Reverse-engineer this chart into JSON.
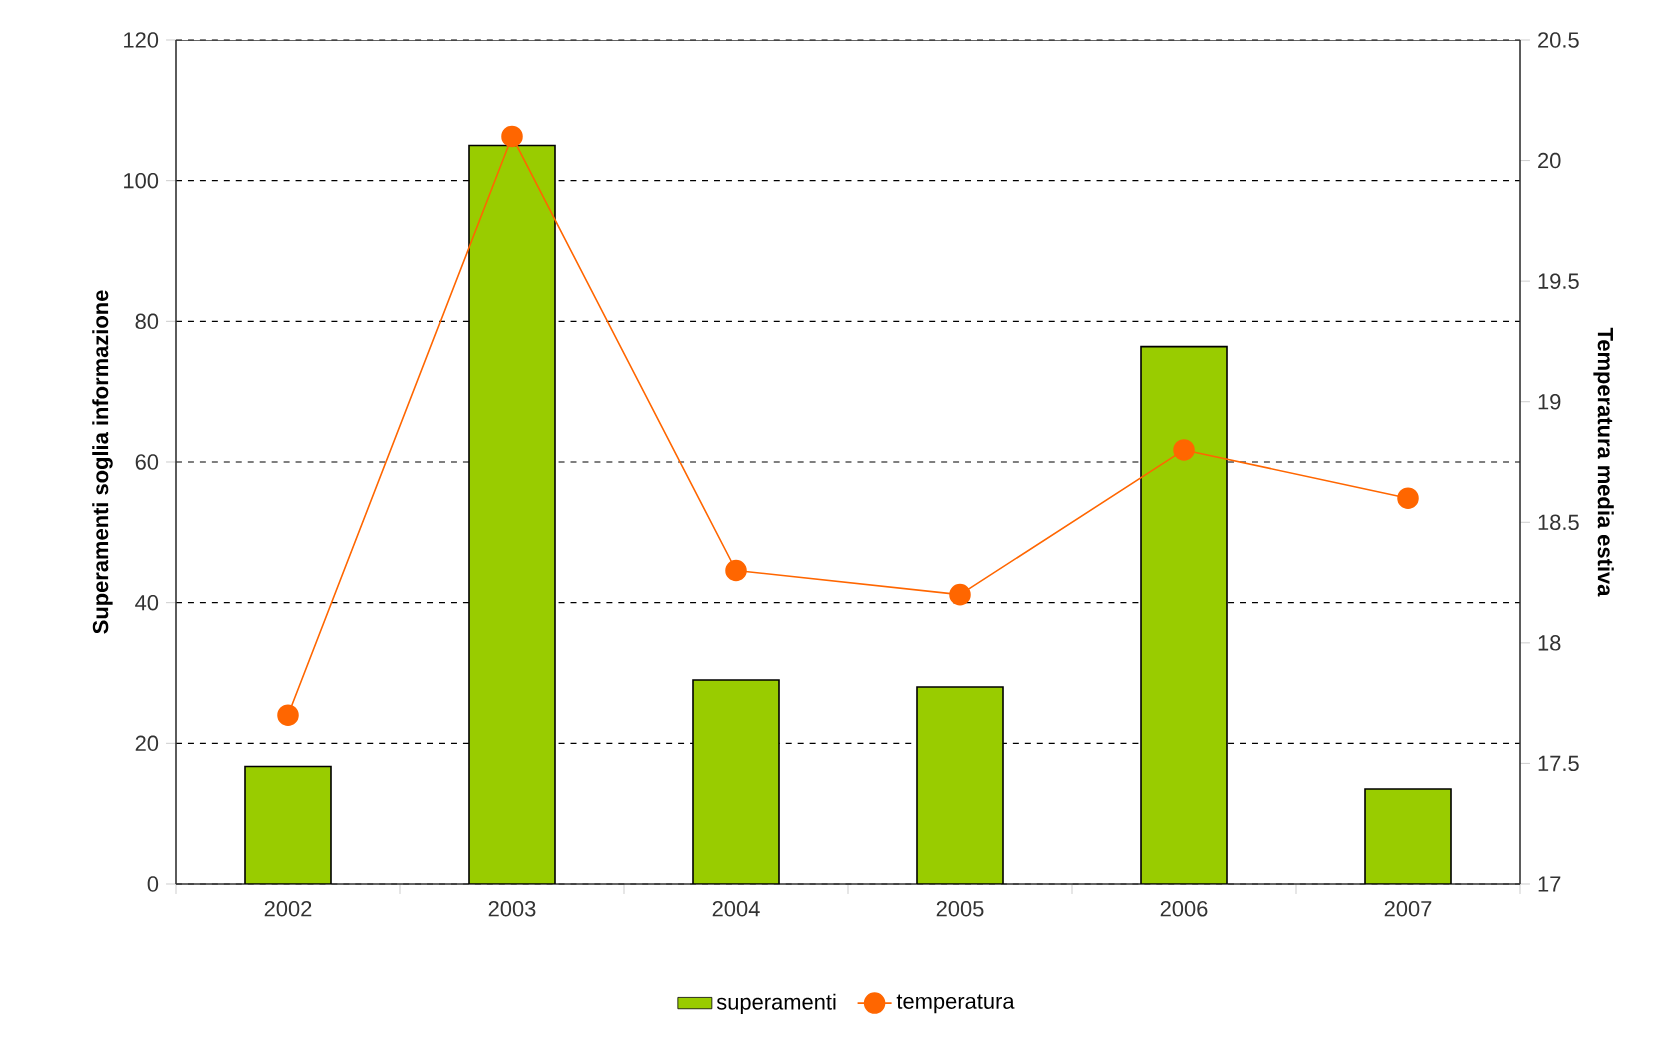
{
  "chart_data": {
    "type": "bar",
    "categories": [
      "2002",
      "2003",
      "2004",
      "2005",
      "2006",
      "2007"
    ],
    "ylabel": "Superamenti soglia informazione",
    "y2label": "Temperatura media estiva",
    "ylim": [
      0,
      120
    ],
    "yticks": [
      0,
      20,
      40,
      60,
      80,
      100,
      120
    ],
    "y2lim": [
      17,
      20.5
    ],
    "y2ticks": [
      17,
      17.5,
      18,
      18.5,
      19,
      19.5,
      20,
      20.5
    ],
    "grid": "y",
    "legend": "bottom",
    "marker": "circle",
    "series": [
      {
        "name": "superamenti",
        "color": "#99cc00",
        "values": [
          16.7,
          105,
          29,
          28,
          76.4,
          13.5
        ]
      },
      {
        "name": "temperatura",
        "type": "line",
        "axis": "y2",
        "color": "#ff6600",
        "values": [
          17.7,
          20.1,
          18.3,
          18.2,
          18.8,
          18.6
        ]
      }
    ]
  }
}
